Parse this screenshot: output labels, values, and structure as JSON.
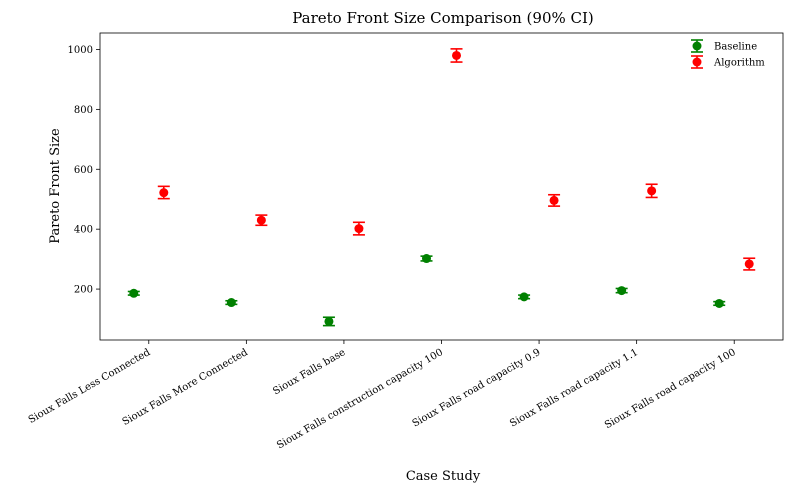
{
  "chart_data": {
    "type": "scatter",
    "title": "Pareto Front Size Comparison (90% CI)",
    "xlabel": "Case Study",
    "ylabel": "Pareto Front Size",
    "ylim": [
      30,
      1055
    ],
    "yticks": [
      200,
      400,
      600,
      800,
      1000
    ],
    "categories": [
      "Sioux Falls Less Connected",
      "Sioux Falls More Connected",
      "Sioux Falls base",
      "Sioux Falls construction capacity 100",
      "Sioux Falls road capacity 0.9",
      "Sioux Falls road capacity 1.1",
      "Sioux Falls road capacity 100"
    ],
    "series": [
      {
        "name": "Baseline",
        "color": "#008000",
        "values": [
          186,
          155,
          92,
          302,
          174,
          195,
          152
        ],
        "ci_low": [
          180,
          149,
          78,
          294,
          168,
          188,
          146
        ],
        "ci_high": [
          192,
          161,
          106,
          310,
          180,
          202,
          158
        ]
      },
      {
        "name": "Algorithm",
        "color": "#ff0000",
        "values": [
          522,
          430,
          402,
          980,
          496,
          528,
          284
        ],
        "ci_low": [
          502,
          413,
          381,
          958,
          477,
          506,
          264
        ],
        "ci_high": [
          543,
          447,
          423,
          1002,
          515,
          550,
          303
        ]
      }
    ],
    "legend_position": "top-right",
    "grid": false
  }
}
